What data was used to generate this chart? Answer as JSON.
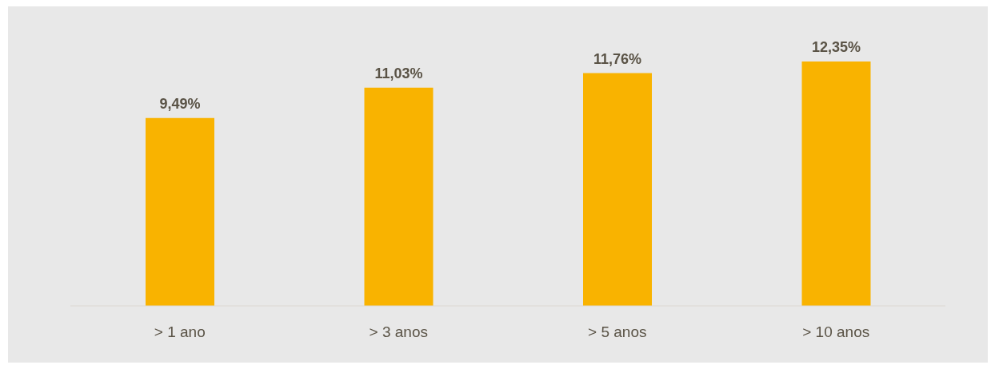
{
  "chart_data": {
    "type": "bar",
    "categories": [
      "> 1 ano",
      "> 3 anos",
      "> 5 anos",
      "> 10 anos"
    ],
    "values": [
      9.49,
      11.03,
      11.76,
      12.35
    ],
    "color": "#f9b300",
    "value_labels": [
      "9,49%",
      "11,03%",
      "11,76%",
      "12,35%"
    ]
  }
}
